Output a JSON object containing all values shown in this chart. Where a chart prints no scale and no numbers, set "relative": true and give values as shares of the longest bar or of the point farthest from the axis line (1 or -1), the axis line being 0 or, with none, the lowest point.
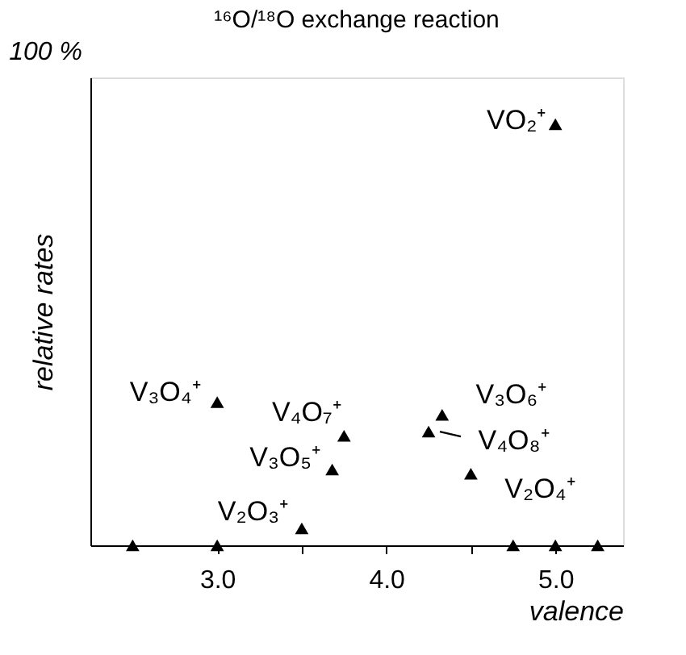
{
  "chart_data": {
    "type": "scatter",
    "title": "¹⁶O/¹⁸O exchange reaction",
    "xlabel": "valence",
    "ylabel": "relative rates",
    "relative": true,
    "x": [
      2.5,
      3.0,
      3.0,
      3.5,
      3.75,
      3.68,
      4.25,
      4.33,
      4.5,
      4.75,
      5.0,
      5.25,
      5.0
    ],
    "values": [
      0,
      0,
      0.34,
      0.04,
      0.26,
      0.18,
      0.27,
      0.31,
      0.17,
      0,
      0,
      0,
      1
    ],
    "color": "#000000",
    "marker": "triangle",
    "grid": false,
    "xlim": [
      2.25,
      5.4
    ],
    "xticks": [
      {
        "value": 3,
        "label": "3.0"
      },
      {
        "value": 3.5,
        "label": null
      },
      {
        "value": 4,
        "label": "4.0"
      },
      {
        "value": 4.5,
        "label": null
      },
      {
        "value": 5,
        "label": "5.0"
      }
    ],
    "annotations": [
      "100 %",
      {
        "text": "V₃O₄⁺",
        "x": 3.0,
        "y": 0.34
      },
      {
        "text": "V₄O₇⁺",
        "x": 3.75,
        "y": 0.26
      },
      {
        "text": "V₃O₅⁺",
        "x": 3.68,
        "y": 0.18
      },
      {
        "text": "V₂O₃⁺",
        "x": 3.5,
        "y": 0.04
      },
      {
        "text": "V₃O₆⁺",
        "x": 4.33,
        "y": 0.31
      },
      {
        "text": "V₄O₈⁺",
        "x": 4.25,
        "y": 0.27
      },
      {
        "text": "V₂O₄⁺",
        "x": 4.5,
        "y": 0.17
      },
      {
        "text": "VO₂⁺",
        "x": 5.0,
        "y": 1
      }
    ]
  }
}
